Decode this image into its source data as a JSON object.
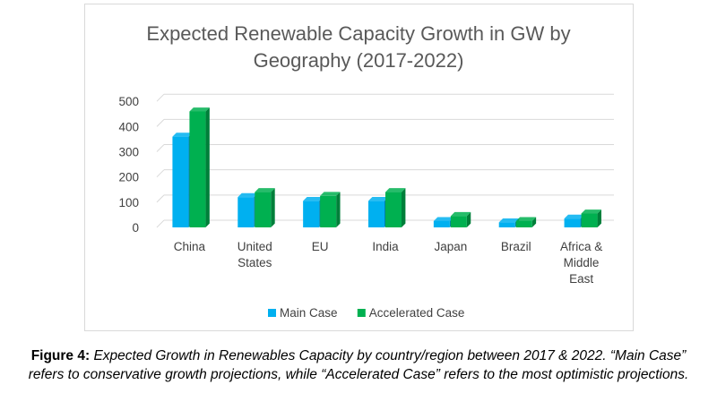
{
  "chart_data": {
    "type": "bar",
    "title_lines": [
      "Expected Renewable Capacity Growth in GW by",
      "Geography (2017-2022)"
    ],
    "categories": [
      [
        "China"
      ],
      [
        "United",
        "States"
      ],
      [
        "EU"
      ],
      [
        "India"
      ],
      [
        "Japan"
      ],
      [
        "Brazil"
      ],
      [
        "Africa &",
        "Middle",
        "East"
      ]
    ],
    "series": [
      {
        "name": "Main Case",
        "color": "#00b0f0",
        "values": [
          360,
          120,
          105,
          105,
          25,
          20,
          35
        ]
      },
      {
        "name": "Accelerated Case",
        "color": "#00b050",
        "values": [
          460,
          140,
          125,
          140,
          45,
          25,
          55
        ]
      }
    ],
    "yticks": [
      "0",
      "100",
      "200",
      "300",
      "400",
      "500"
    ],
    "ylim": [
      0,
      500
    ],
    "grid": true,
    "legend_position": "bottom"
  },
  "caption": {
    "label": "Figure 4:",
    "line1": " Expected Growth in Renewables Capacity by country/region between 2017 & 2022. “Main Case”",
    "line2": "refers to conservative growth projections, while “Accelerated Case” refers to the most optimistic projections."
  }
}
